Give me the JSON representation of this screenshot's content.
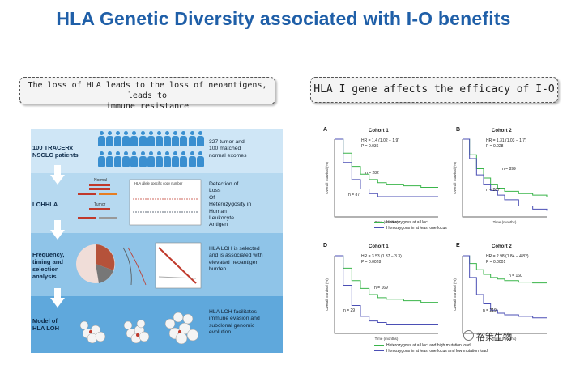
{
  "title": "HLA Genetic Diversity associated with I-O benefits",
  "callouts": {
    "left_line1": "The loss of HLA leads to the loss of neoantigens, leads to",
    "left_line2": "immune resistance",
    "right": "HLA I gene affects the efficacy of I-O"
  },
  "workflow": {
    "steps": [
      {
        "label": "100 TRACERx\nNSCLC patients",
        "desc": "327 tumor and\n100 matched\nnormal exomes"
      },
      {
        "label": "LOHHLA",
        "desc": "Detection of\nLoss\nOf\nHeterozygosity in\nHuman\nLeukocyte\nAntigen"
      },
      {
        "label": "Frequency,\ntiming and\nselection\nanalysis",
        "desc": "HLA LOH is selected\nand is associated with\nelevated neoantigen\nburden"
      },
      {
        "label": "Model of\nHLA LOH",
        "desc": "HLA LOH facilitates\nimmune evasion and\nsubclonal genomic\nevolution"
      }
    ],
    "lohhla_labels": {
      "normal": "Normal",
      "tumor": "Tumor",
      "plot_title": "HLA allele specific copy number"
    }
  },
  "km_panels": [
    {
      "letter": "A",
      "title": "Cohort 1",
      "hr": "HR = 1.4 (1.02 − 1.9)",
      "p": "P = 0.036",
      "n_top": "n = 282",
      "n_bottom": "n = 87",
      "chart_data": {
        "type": "line",
        "xlabel": "Time (months)",
        "ylabel": "Overall Survival (%)",
        "series": [
          {
            "color": "#3ab54a",
            "x": [
              0,
              5,
              10,
              15,
              20,
              25,
              30,
              40,
              50,
              60
            ],
            "y": [
              100,
              82,
              65,
              55,
              48,
              44,
              42,
              40,
              38,
              38
            ]
          },
          {
            "color": "#4b4fb5",
            "x": [
              0,
              5,
              10,
              15,
              20,
              25,
              30,
              40,
              50,
              60
            ],
            "y": [
              100,
              70,
              48,
              36,
              30,
              26,
              26,
              26,
              26,
              26
            ]
          }
        ]
      }
    },
    {
      "letter": "B",
      "title": "Cohort 2",
      "hr": "HR = 1.31 (1.03 − 1.7)",
      "p": "P = 0.028",
      "n_top": "n = 899",
      "n_bottom": "n = 267",
      "chart_data": {
        "type": "line",
        "xlabel": "Time (months)",
        "ylabel": "Overall Survival (%)",
        "series": [
          {
            "color": "#3ab54a",
            "x": [
              0,
              5,
              10,
              15,
              20,
              25,
              30,
              40,
              50,
              60
            ],
            "y": [
              100,
              80,
              62,
              50,
              42,
              37,
              33,
              30,
              28,
              26
            ]
          },
          {
            "color": "#4b4fb5",
            "x": [
              0,
              5,
              10,
              15,
              20,
              25,
              30,
              40,
              50,
              60
            ],
            "y": [
              100,
              75,
              54,
              42,
              34,
              28,
              22,
              14,
              10,
              8
            ]
          }
        ]
      }
    },
    {
      "letter": "D",
      "title": "Cohort 1",
      "hr": "HR = 3.53 (1.37 − 3.3)",
      "p": "P = 0.0028",
      "n_top": "n = 169",
      "n_bottom": "n = 29",
      "chart_data": {
        "type": "line",
        "xlabel": "Time (months)",
        "ylabel": "Overall Survival (%)",
        "series": [
          {
            "color": "#3ab54a",
            "x": [
              0,
              5,
              10,
              15,
              20,
              25,
              30,
              40,
              50,
              60
            ],
            "y": [
              100,
              84,
              68,
              58,
              50,
              46,
              44,
              42,
              40,
              40
            ]
          },
          {
            "color": "#4b4fb5",
            "x": [
              0,
              5,
              10,
              15,
              20,
              25,
              30,
              40,
              50,
              60
            ],
            "y": [
              100,
              62,
              36,
              22,
              16,
              14,
              12,
              12,
              12,
              12
            ]
          }
        ]
      }
    },
    {
      "letter": "E",
      "title": "Cohort 2",
      "hr": "HR = 2.98 (1.84 − 4.82)",
      "p": "P = 0.0001",
      "n_top": "n = 160",
      "n_bottom": "n = 219",
      "chart_data": {
        "type": "line",
        "xlabel": "Time (months)",
        "ylabel": "Overall Survival (%)",
        "series": [
          {
            "color": "#3ab54a",
            "x": [
              0,
              5,
              10,
              15,
              20,
              25,
              30,
              40,
              50,
              60
            ],
            "y": [
              100,
              90,
              82,
              76,
              72,
              70,
              68,
              66,
              65,
              65
            ]
          },
          {
            "color": "#4b4fb5",
            "x": [
              0,
              5,
              10,
              15,
              20,
              25,
              30,
              40,
              50,
              60
            ],
            "y": [
              100,
              72,
              50,
              38,
              30,
              26,
              24,
              22,
              20,
              20
            ]
          }
        ]
      }
    }
  ],
  "legends": {
    "top": [
      "Heterozygous at all loci",
      "Homozygous in at least one locus"
    ],
    "bottom": [
      "Heterozygous at all loci and high mutation load",
      "Homozygous in at least one locus and low mutation load"
    ]
  },
  "watermark": "裕策生物"
}
